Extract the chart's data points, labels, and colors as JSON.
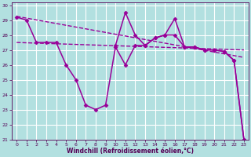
{
  "title": "",
  "xlabel": "Windchill (Refroidissement éolien,°C)",
  "background_color": "#b2e0e0",
  "grid_color": "#ffffff",
  "line_color": "#990099",
  "xlim": [
    -0.5,
    23.5
  ],
  "ylim": [
    21,
    30.2
  ],
  "yticks": [
    21,
    22,
    23,
    24,
    25,
    26,
    27,
    28,
    29,
    30
  ],
  "xticks": [
    0,
    1,
    2,
    3,
    4,
    5,
    6,
    7,
    8,
    9,
    10,
    11,
    12,
    13,
    14,
    15,
    16,
    17,
    18,
    19,
    20,
    21,
    22,
    23
  ],
  "series": [
    {
      "x": [
        0,
        1,
        2,
        3,
        4,
        5,
        6,
        7,
        8,
        9,
        10,
        11,
        12,
        13,
        14,
        15,
        16,
        17,
        18,
        19,
        20,
        21,
        22,
        23
      ],
      "y": [
        29.2,
        29.0,
        27.5,
        27.5,
        27.5,
        26.0,
        25.0,
        23.3,
        23.0,
        23.3,
        27.2,
        26.0,
        27.3,
        27.3,
        27.8,
        28.0,
        28.0,
        27.2,
        27.2,
        27.0,
        27.0,
        26.9,
        26.3,
        21.0
      ],
      "marker": "D",
      "markersize": 2.5,
      "linewidth": 1.1,
      "linestyle": "-"
    },
    {
      "x": [
        10,
        11,
        12,
        13,
        14,
        15,
        16,
        17,
        18,
        19,
        20,
        21,
        22,
        23
      ],
      "y": [
        27.3,
        29.5,
        28.0,
        27.3,
        27.8,
        28.0,
        29.1,
        27.2,
        27.2,
        27.0,
        27.0,
        26.9,
        26.3,
        21.0
      ],
      "marker": "D",
      "markersize": 2.5,
      "linewidth": 1.1,
      "linestyle": "-"
    },
    {
      "x": [
        0,
        23
      ],
      "y": [
        29.25,
        26.5
      ],
      "marker": null,
      "markersize": 0,
      "linewidth": 1.0,
      "linestyle": "--"
    },
    {
      "x": [
        0,
        23
      ],
      "y": [
        27.5,
        27.0
      ],
      "marker": null,
      "markersize": 0,
      "linewidth": 1.0,
      "linestyle": "--"
    }
  ]
}
